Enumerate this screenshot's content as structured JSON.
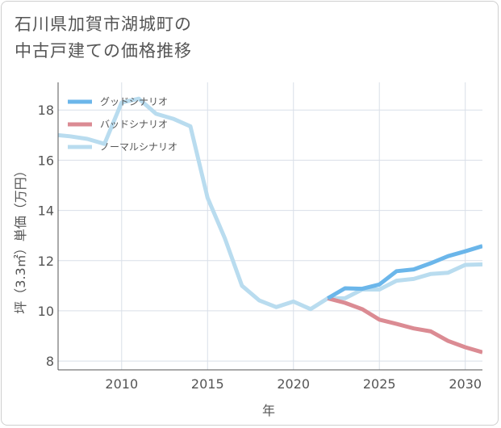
{
  "title_line1": "石川県加賀市湖城町の",
  "title_line2": "中古戸建ての価格推移",
  "chart_data": {
    "type": "line",
    "xlabel": "年",
    "ylabel": "坪（3.3㎡）単価（万円）",
    "xlim": [
      2006.3,
      2031.0
    ],
    "ylim": [
      7.65,
      19.1
    ],
    "xticks": [
      2010,
      2015,
      2020,
      2025,
      2030
    ],
    "yticks": [
      8,
      10,
      12,
      14,
      16,
      18
    ],
    "grid": true,
    "legend_position": "top-left",
    "series": [
      {
        "name": "グッドシナリオ",
        "color": "#6bb6ea",
        "x": [
          2022,
          2023,
          2024,
          2025,
          2026,
          2027,
          2028,
          2029,
          2030,
          2031
        ],
        "y": [
          10.5,
          10.9,
          10.88,
          11.05,
          11.58,
          11.65,
          11.9,
          12.18,
          12.37,
          12.58
        ]
      },
      {
        "name": "バッドシナリオ",
        "color": "#db8b93",
        "x": [
          2022,
          2023,
          2024,
          2025,
          2026,
          2027,
          2028,
          2029,
          2030,
          2031
        ],
        "y": [
          10.5,
          10.32,
          10.07,
          9.65,
          9.48,
          9.3,
          9.18,
          8.8,
          8.55,
          8.35
        ]
      },
      {
        "name": "ノーマルシナリオ",
        "color": "#b9dcef",
        "x": [
          2006.3,
          2007,
          2008,
          2009,
          2010,
          2011,
          2012,
          2013,
          2014,
          2015,
          2016,
          2017,
          2018,
          2019,
          2020,
          2021,
          2022,
          2023,
          2024,
          2025,
          2026,
          2027,
          2028,
          2029,
          2030,
          2031
        ],
        "y": [
          17.0,
          16.95,
          16.85,
          16.65,
          18.3,
          18.45,
          17.85,
          17.65,
          17.35,
          14.5,
          12.9,
          11.0,
          10.42,
          10.15,
          10.37,
          10.07,
          10.5,
          10.5,
          10.85,
          10.85,
          11.2,
          11.27,
          11.47,
          11.52,
          11.83,
          11.85
        ]
      }
    ]
  }
}
